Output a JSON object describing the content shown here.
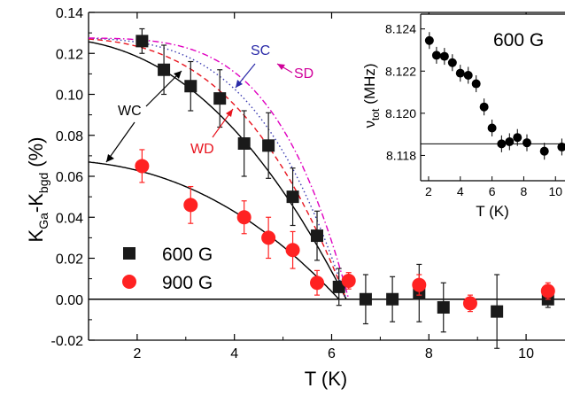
{
  "chart_data": [
    {
      "type": "scatter",
      "title": "",
      "xlabel": "T (K)",
      "ylabel": "K",
      "ylabel_sub1": "Ga",
      "ylabel_mid": "-K",
      "ylabel_sub2": "bgd",
      "ylabel_unit": "(%)",
      "xlim": [
        1.0,
        10.8
      ],
      "ylim": [
        -0.02,
        0.14
      ],
      "xticks": [
        2,
        4,
        6,
        8,
        10
      ],
      "yticks": [
        -0.02,
        0.0,
        0.02,
        0.04,
        0.06,
        0.08,
        0.1,
        0.12,
        0.14
      ],
      "ytick_labels": [
        "-0.02",
        "0.00",
        "0.02",
        "0.04",
        "0.06",
        "0.08",
        "0.10",
        "0.12",
        "0.14"
      ],
      "xtick_labels": [
        "2",
        "4",
        "6",
        "8",
        "10"
      ],
      "legend_position": "bottom-left",
      "series": [
        {
          "name": "600 G",
          "marker": "square",
          "color": "#1a1a1a",
          "points": [
            {
              "x": 2.1,
              "y": 0.126,
              "err": 0.006
            },
            {
              "x": 2.55,
              "y": 0.112,
              "err": 0.012
            },
            {
              "x": 3.1,
              "y": 0.104,
              "err": 0.012
            },
            {
              "x": 3.7,
              "y": 0.098,
              "err": 0.014
            },
            {
              "x": 4.2,
              "y": 0.076,
              "err": 0.016
            },
            {
              "x": 4.7,
              "y": 0.075,
              "err": 0.016
            },
            {
              "x": 5.2,
              "y": 0.05,
              "err": 0.014
            },
            {
              "x": 5.7,
              "y": 0.031,
              "err": 0.012
            },
            {
              "x": 6.15,
              "y": 0.006,
              "err": 0.009
            },
            {
              "x": 6.7,
              "y": 0.0,
              "err": 0.012
            },
            {
              "x": 7.25,
              "y": 0.0,
              "err": 0.011
            },
            {
              "x": 7.8,
              "y": 0.003,
              "err": 0.014
            },
            {
              "x": 8.3,
              "y": -0.004,
              "err": 0.012
            },
            {
              "x": 9.4,
              "y": -0.006,
              "err": 0.018
            },
            {
              "x": 10.45,
              "y": 0.0,
              "err": 0.004
            }
          ]
        },
        {
          "name": "900 G",
          "marker": "circle",
          "color": "#ff2222",
          "points": [
            {
              "x": 2.1,
              "y": 0.065,
              "err": 0.008
            },
            {
              "x": 3.1,
              "y": 0.046,
              "err": 0.009
            },
            {
              "x": 4.2,
              "y": 0.04,
              "err": 0.008
            },
            {
              "x": 4.7,
              "y": 0.03,
              "err": 0.01
            },
            {
              "x": 5.2,
              "y": 0.024,
              "err": 0.009
            },
            {
              "x": 5.7,
              "y": 0.008,
              "err": 0.006
            },
            {
              "x": 6.35,
              "y": 0.009,
              "err": 0.004
            },
            {
              "x": 7.8,
              "y": 0.007,
              "err": 0.005
            },
            {
              "x": 8.85,
              "y": -0.002,
              "err": 0.004
            },
            {
              "x": 10.45,
              "y": 0.004,
              "err": 0.004
            }
          ]
        }
      ],
      "fits": [
        {
          "id": "wc600",
          "style": "solid",
          "color": "#000000",
          "amplitude": 0.1275,
          "tc": 6.3,
          "p": 2.3
        },
        {
          "id": "wc900",
          "style": "solid",
          "color": "#000000",
          "amplitude": 0.068,
          "tc": 6.15,
          "p": 2.3
        },
        {
          "id": "wd",
          "style": "dashed",
          "color": "#e8141e",
          "amplitude": 0.1275,
          "tc": 6.3,
          "p": 3.0
        },
        {
          "id": "sc",
          "style": "dotted",
          "color": "#3b3bb0",
          "amplitude": 0.1275,
          "tc": 6.3,
          "p": 3.6
        },
        {
          "id": "sd",
          "style": "dashdot",
          "color": "#e000c0",
          "amplitude": 0.1275,
          "tc": 6.35,
          "p": 4.4
        }
      ],
      "annotations": [
        {
          "text": "WC",
          "color": "#000000"
        },
        {
          "text": "SC",
          "color": "#2a2aa8"
        },
        {
          "text": "SD",
          "color": "#d0009a"
        },
        {
          "text": "WD",
          "color": "#e8141e"
        }
      ]
    },
    {
      "type": "scatter",
      "title": "",
      "label": "600 G",
      "xlabel": "T (K)",
      "ylabel": "ν",
      "ylabel_sub": "tot",
      "ylabel_unit": "(MHz)",
      "xlim": [
        1.5,
        10.6
      ],
      "ylim": [
        8.1168,
        8.1247
      ],
      "xticks": [
        2,
        4,
        6,
        8,
        10
      ],
      "xtick_labels": [
        "2",
        "4",
        "6",
        "8",
        "10"
      ],
      "yticks": [
        8.118,
        8.12,
        8.122,
        8.124
      ],
      "ytick_labels": [
        "8.118",
        "8.120",
        "8.122",
        "8.124"
      ],
      "baseline": 8.11855,
      "series": [
        {
          "name": "600 G",
          "marker": "circle",
          "color": "#000000",
          "points": [
            {
              "x": 2.05,
              "y": 8.12345,
              "err": 0.0004
            },
            {
              "x": 2.5,
              "y": 8.12275,
              "err": 0.0004
            },
            {
              "x": 3.0,
              "y": 8.1227,
              "err": 0.0004
            },
            {
              "x": 3.5,
              "y": 8.1224,
              "err": 0.0004
            },
            {
              "x": 4.0,
              "y": 8.1219,
              "err": 0.0004
            },
            {
              "x": 4.5,
              "y": 8.1218,
              "err": 0.0004
            },
            {
              "x": 5.0,
              "y": 8.1214,
              "err": 0.0004
            },
            {
              "x": 5.5,
              "y": 8.1203,
              "err": 0.0004
            },
            {
              "x": 6.0,
              "y": 8.1193,
              "err": 0.0004
            },
            {
              "x": 6.6,
              "y": 8.11855,
              "err": 0.0004
            },
            {
              "x": 7.1,
              "y": 8.11865,
              "err": 0.0004
            },
            {
              "x": 7.6,
              "y": 8.11885,
              "err": 0.0004
            },
            {
              "x": 8.2,
              "y": 8.1186,
              "err": 0.0004
            },
            {
              "x": 9.3,
              "y": 8.1182,
              "err": 0.0004
            },
            {
              "x": 10.4,
              "y": 8.1184,
              "err": 0.0004
            }
          ]
        }
      ]
    }
  ]
}
